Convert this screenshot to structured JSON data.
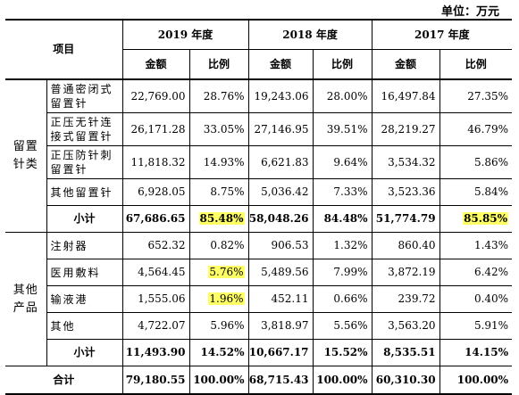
{
  "unit": "单位：万元",
  "header": {
    "item": "项目",
    "years": [
      "2019 年度",
      "2018 年度",
      "2017 年度"
    ],
    "amount": "金额",
    "ratio": "比例"
  },
  "groups": [
    {
      "category": "留置\n针类",
      "rows": [
        {
          "name": "普通密闭式留置针",
          "v": [
            "22,769.00",
            "28.76%",
            "19,243.06",
            "28.00%",
            "16,497.84",
            "27.35%"
          ]
        },
        {
          "name": "正压无针连接式留置针",
          "v": [
            "26,171.28",
            "33.05%",
            "27,146.95",
            "39.51%",
            "28,219.27",
            "46.79%"
          ]
        },
        {
          "name": "正压防针刺留置针",
          "v": [
            "11,818.32",
            "14.93%",
            "6,621.83",
            "9.64%",
            "3,534.32",
            "5.86%"
          ]
        },
        {
          "name": "其他留置针",
          "v": [
            "6,928.05",
            "8.75%",
            "5,036.42",
            "7.33%",
            "3,523.36",
            "5.84%"
          ]
        }
      ],
      "subtotal": {
        "label": "小计",
        "v": [
          "67,686.65",
          "85.48%",
          "58,048.26",
          "84.48%",
          "51,774.79",
          "85.85%"
        ]
      }
    },
    {
      "category": "其他\n产品",
      "rows": [
        {
          "name": "注射器",
          "v": [
            "652.32",
            "0.82%",
            "906.53",
            "1.32%",
            "860.40",
            "1.43%"
          ]
        },
        {
          "name": "医用敷料",
          "v": [
            "4,564.45",
            "5.76%",
            "5,489.56",
            "7.99%",
            "3,872.19",
            "6.42%"
          ]
        },
        {
          "name": "输液港",
          "v": [
            "1,555.06",
            "1.96%",
            "452.11",
            "0.66%",
            "239.72",
            "0.40%"
          ]
        },
        {
          "name": "其他",
          "v": [
            "4,722.07",
            "5.96%",
            "3,818.97",
            "5.56%",
            "3,563.20",
            "5.91%"
          ]
        }
      ],
      "subtotal": {
        "label": "小计",
        "v": [
          "11,493.90",
          "14.52%",
          "10,667.17",
          "15.52%",
          "8,535.51",
          "14.15%"
        ]
      }
    }
  ],
  "total": {
    "label": "合计",
    "v": [
      "79,180.55",
      "100.00%",
      "68,715.43",
      "100.00%",
      "60,310.30",
      "100.00%"
    ]
  },
  "highlight_color": "#ffff66"
}
